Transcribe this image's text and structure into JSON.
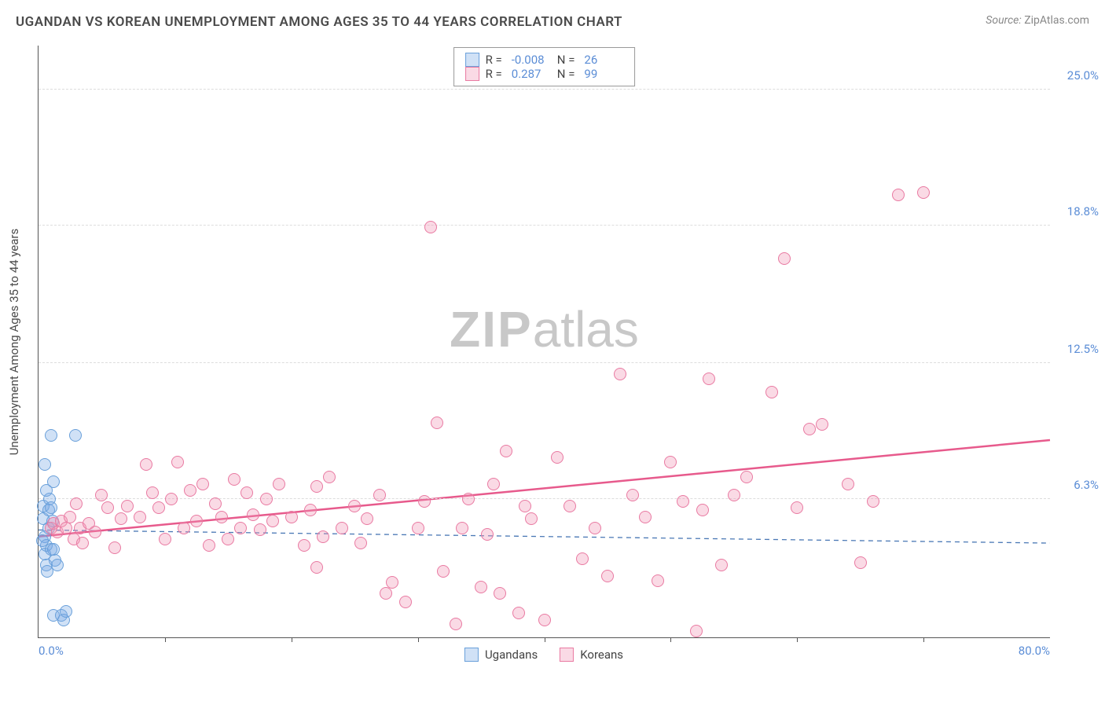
{
  "title": "UGANDAN VS KOREAN UNEMPLOYMENT AMONG AGES 35 TO 44 YEARS CORRELATION CHART",
  "source_prefix": "Source:",
  "source_name": "ZipAtlas.com",
  "watermark_bold": "ZIP",
  "watermark_rest": "atlas",
  "ylabel": "Unemployment Among Ages 35 to 44 years",
  "chart": {
    "type": "scatter",
    "xlim": [
      0,
      80
    ],
    "ylim": [
      0,
      27
    ],
    "x_ticks_minor": [
      10,
      20,
      30,
      40,
      50,
      60,
      70
    ],
    "x_tick_labels": [
      {
        "v": 0,
        "t": "0.0%"
      },
      {
        "v": 80,
        "t": "80.0%"
      }
    ],
    "y_grid": [
      6.3,
      12.5,
      18.8,
      25.0
    ],
    "y_tick_labels": [
      {
        "v": 6.3,
        "t": "6.3%"
      },
      {
        "v": 12.5,
        "t": "12.5%"
      },
      {
        "v": 18.8,
        "t": "18.8%"
      },
      {
        "v": 25.0,
        "t": "25.0%"
      }
    ],
    "grid_color": "#dddddd",
    "axis_color": "#555555",
    "background": "#ffffff",
    "marker_radius": 8,
    "series": [
      {
        "name": "Ugandans",
        "fill": "rgba(120,170,230,0.35)",
        "stroke": "#6aa0da",
        "R": "-0.008",
        "N": "26",
        "trend": {
          "x1": 0,
          "y1": 4.9,
          "x2": 80,
          "y2": 4.3,
          "color": "#4a78b5",
          "dash": "6,5",
          "width": 1.3
        },
        "points": [
          [
            0.4,
            6.0
          ],
          [
            0.4,
            5.4
          ],
          [
            0.5,
            4.6
          ],
          [
            0.5,
            3.8
          ],
          [
            0.6,
            3.3
          ],
          [
            0.6,
            4.2
          ],
          [
            0.8,
            5.8
          ],
          [
            0.8,
            5.0
          ],
          [
            0.9,
            6.3
          ],
          [
            1.0,
            5.9
          ],
          [
            1.0,
            4.0
          ],
          [
            1.1,
            5.3
          ],
          [
            1.2,
            7.1
          ],
          [
            1.2,
            4.0
          ],
          [
            1.3,
            3.5
          ],
          [
            1.0,
            9.2
          ],
          [
            0.5,
            7.9
          ],
          [
            2.9,
            9.2
          ],
          [
            1.2,
            1.0
          ],
          [
            1.8,
            1.0
          ],
          [
            2.0,
            0.8
          ],
          [
            2.2,
            1.2
          ],
          [
            1.5,
            3.3
          ],
          [
            0.7,
            3.0
          ],
          [
            0.6,
            6.7
          ],
          [
            0.3,
            4.4
          ]
        ]
      },
      {
        "name": "Koreans",
        "fill": "rgba(240,150,180,0.35)",
        "stroke": "#e97aa2",
        "R": "0.287",
        "N": "99",
        "trend": {
          "x1": 0,
          "y1": 4.6,
          "x2": 80,
          "y2": 9.0,
          "color": "#e75a8c",
          "dash": "",
          "width": 2.5
        },
        "points": [
          [
            1.0,
            5.0
          ],
          [
            1.2,
            5.2
          ],
          [
            1.5,
            4.8
          ],
          [
            1.8,
            5.3
          ],
          [
            2.2,
            5.0
          ],
          [
            2.5,
            5.5
          ],
          [
            2.8,
            4.5
          ],
          [
            3.0,
            6.1
          ],
          [
            3.3,
            5.0
          ],
          [
            3.5,
            4.3
          ],
          [
            4.0,
            5.2
          ],
          [
            4.5,
            4.8
          ],
          [
            5.0,
            6.5
          ],
          [
            5.5,
            5.9
          ],
          [
            6.0,
            4.1
          ],
          [
            6.5,
            5.4
          ],
          [
            7.0,
            6.0
          ],
          [
            8.0,
            5.5
          ],
          [
            8.5,
            7.9
          ],
          [
            9.0,
            6.6
          ],
          [
            9.5,
            5.9
          ],
          [
            10.0,
            4.5
          ],
          [
            10.5,
            6.3
          ],
          [
            11.0,
            8.0
          ],
          [
            11.5,
            5.0
          ],
          [
            12.0,
            6.7
          ],
          [
            12.5,
            5.3
          ],
          [
            13.0,
            7.0
          ],
          [
            13.5,
            4.2
          ],
          [
            14.0,
            6.1
          ],
          [
            14.5,
            5.5
          ],
          [
            15.0,
            4.5
          ],
          [
            15.5,
            7.2
          ],
          [
            16.0,
            5.0
          ],
          [
            16.5,
            6.6
          ],
          [
            17.0,
            5.6
          ],
          [
            17.5,
            4.9
          ],
          [
            18.0,
            6.3
          ],
          [
            18.5,
            5.3
          ],
          [
            19.0,
            7.0
          ],
          [
            20.0,
            5.5
          ],
          [
            21.0,
            4.2
          ],
          [
            21.5,
            5.8
          ],
          [
            22.0,
            6.9
          ],
          [
            22.5,
            4.6
          ],
          [
            23.0,
            7.3
          ],
          [
            24.0,
            5.0
          ],
          [
            25.0,
            6.0
          ],
          [
            25.5,
            4.3
          ],
          [
            26.0,
            5.4
          ],
          [
            27.0,
            6.5
          ],
          [
            27.5,
            2.0
          ],
          [
            28.0,
            2.5
          ],
          [
            29.0,
            1.6
          ],
          [
            30.0,
            5.0
          ],
          [
            30.5,
            6.2
          ],
          [
            31.0,
            18.7
          ],
          [
            31.5,
            9.8
          ],
          [
            32.0,
            3.0
          ],
          [
            33.0,
            0.6
          ],
          [
            34.0,
            6.3
          ],
          [
            35.0,
            2.3
          ],
          [
            35.5,
            4.7
          ],
          [
            36.0,
            7.0
          ],
          [
            37.0,
            8.5
          ],
          [
            38.0,
            1.1
          ],
          [
            38.5,
            6.0
          ],
          [
            39.0,
            5.4
          ],
          [
            40.0,
            0.8
          ],
          [
            41.0,
            8.2
          ],
          [
            42.0,
            6.0
          ],
          [
            43.0,
            3.6
          ],
          [
            44.0,
            5.0
          ],
          [
            45.0,
            2.8
          ],
          [
            46.0,
            12.0
          ],
          [
            47.0,
            6.5
          ],
          [
            48.0,
            5.5
          ],
          [
            49.0,
            2.6
          ],
          [
            50.0,
            8.0
          ],
          [
            51.0,
            6.2
          ],
          [
            52.0,
            0.3
          ],
          [
            53.0,
            11.8
          ],
          [
            54.0,
            3.3
          ],
          [
            55.0,
            6.5
          ],
          [
            56.0,
            7.3
          ],
          [
            58.0,
            11.2
          ],
          [
            59.0,
            17.3
          ],
          [
            60.0,
            5.9
          ],
          [
            61.0,
            9.5
          ],
          [
            62.0,
            9.7
          ],
          [
            64.0,
            7.0
          ],
          [
            65.0,
            3.4
          ],
          [
            66.0,
            6.2
          ],
          [
            68.0,
            20.2
          ],
          [
            70.0,
            20.3
          ],
          [
            52.5,
            5.8
          ],
          [
            33.5,
            5.0
          ],
          [
            22.0,
            3.2
          ],
          [
            36.5,
            2.0
          ]
        ]
      }
    ]
  },
  "legend_top": {
    "r_label": "R =",
    "n_label": "N ="
  },
  "legend_bottom": [
    {
      "label": "Ugandans",
      "fill": "rgba(120,170,230,0.35)",
      "stroke": "#6aa0da"
    },
    {
      "label": "Koreans",
      "fill": "rgba(240,150,180,0.35)",
      "stroke": "#e97aa2"
    }
  ]
}
